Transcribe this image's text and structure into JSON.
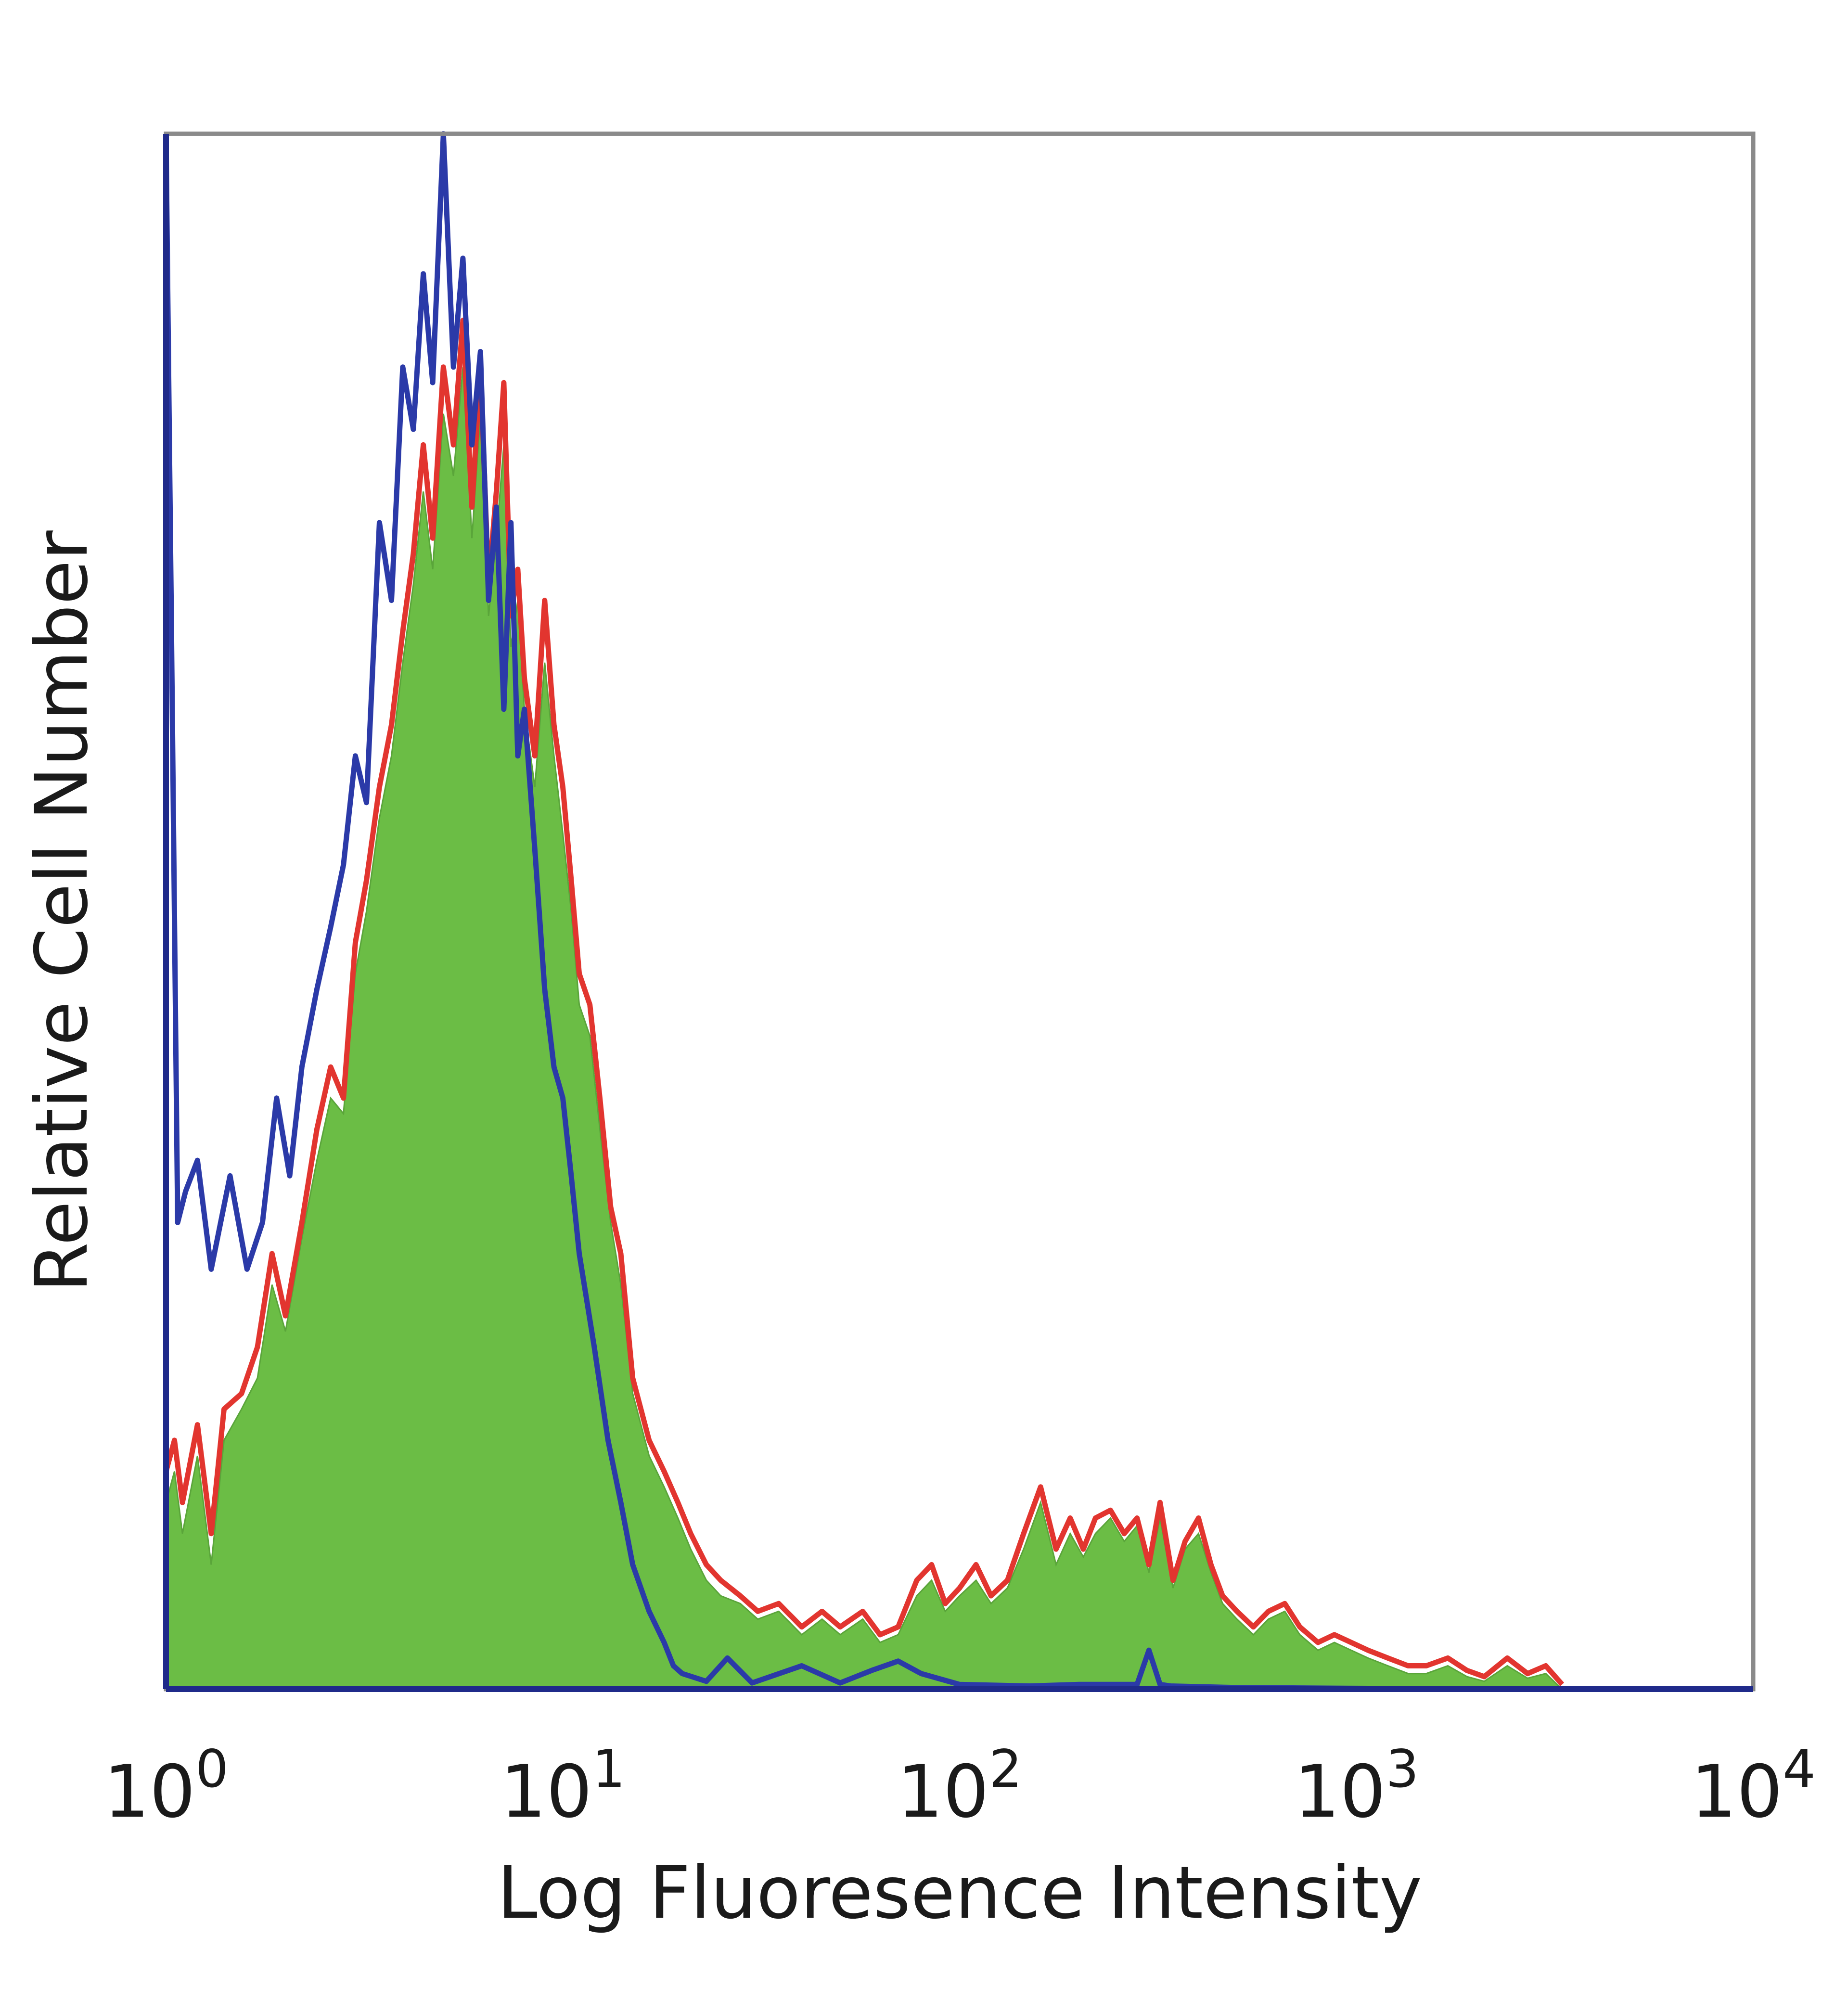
{
  "chart_data": {
    "type": "area",
    "title": "",
    "xlabel": "Log Fluoresence Intensity",
    "ylabel": "Relative Cell Number",
    "x_scale": "log",
    "xlim": [
      1,
      10000
    ],
    "ylim": [
      0,
      100
    ],
    "grid": false,
    "legend": "none",
    "x_ticks": [
      {
        "value": 1,
        "base": "10",
        "exp": "0"
      },
      {
        "value": 10,
        "base": "10",
        "exp": "1"
      },
      {
        "value": 100,
        "base": "10",
        "exp": "2"
      },
      {
        "value": 1000,
        "base": "10",
        "exp": "3"
      },
      {
        "value": 10000,
        "base": "10",
        "exp": "4"
      }
    ],
    "series": [
      {
        "style": "line",
        "color": "#2b3aa8",
        "x": [
          1.0,
          1.03,
          1.07,
          1.12,
          1.2,
          1.3,
          1.45,
          1.6,
          1.75,
          1.9,
          2.05,
          2.2,
          2.4,
          2.6,
          2.8,
          3.0,
          3.2,
          3.45,
          3.7,
          3.95,
          4.2,
          4.45,
          4.7,
          5.0,
          5.3,
          5.6,
          5.9,
          6.2,
          6.5,
          6.8,
          7.1,
          7.4,
          7.7,
          8.0,
          8.5,
          9.0,
          9.5,
          10.0,
          10.5,
          11.0,
          12.0,
          13.0,
          14.0,
          15.0,
          16.5,
          18.0,
          19.0,
          20.0,
          23.0,
          26.0,
          30.0,
          40.0,
          50.0,
          60.0,
          70.0,
          80.0,
          100.0,
          150.0,
          200.0,
          280.0,
          300.0,
          320.0,
          340.0,
          500.0,
          1000.0,
          3000.0,
          10000.0
        ],
        "values": [
          100.0,
          70.0,
          30.0,
          32.0,
          34.0,
          27.0,
          33.0,
          27.0,
          30.0,
          38.0,
          33.0,
          40.0,
          45.0,
          49.0,
          53.0,
          60.0,
          57.0,
          75.0,
          70.0,
          85.0,
          81.0,
          91.0,
          84.0,
          100.0,
          85.0,
          92.0,
          80.0,
          86.0,
          70.0,
          76.0,
          63.0,
          75.0,
          60.0,
          63.0,
          54.0,
          45.0,
          40.0,
          38.0,
          33.0,
          28.0,
          22.0,
          16.0,
          12.0,
          8.0,
          5.0,
          3.0,
          1.5,
          1.0,
          0.5,
          2.0,
          0.4,
          1.5,
          0.4,
          1.2,
          1.8,
          1.0,
          0.3,
          0.2,
          0.3,
          0.3,
          2.5,
          0.3,
          0.2,
          0.1,
          0.05,
          0.0,
          0.0
        ]
      },
      {
        "style": "line",
        "color": "#e2352f",
        "x": [
          1.0,
          1.05,
          1.1,
          1.2,
          1.3,
          1.4,
          1.55,
          1.7,
          1.85,
          2.0,
          2.2,
          2.4,
          2.6,
          2.8,
          3.0,
          3.2,
          3.45,
          3.7,
          3.95,
          4.2,
          4.45,
          4.7,
          5.0,
          5.3,
          5.6,
          5.9,
          6.2,
          6.5,
          6.8,
          7.1,
          7.4,
          7.7,
          8.0,
          8.5,
          9.0,
          9.5,
          10.0,
          10.5,
          11.0,
          11.7,
          12.4,
          13.2,
          14.0,
          15.0,
          16.5,
          18.0,
          19.5,
          21.0,
          23.0,
          25.0,
          28.0,
          31.0,
          35.0,
          40.0,
          45.0,
          50.0,
          57.0,
          63.0,
          70.0,
          78.0,
          85.0,
          92.0,
          100.0,
          110.0,
          120.0,
          132.0,
          145.0,
          160.0,
          175.0,
          190.0,
          205.0,
          220.0,
          240.0,
          260.0,
          280.0,
          300.0,
          320.0,
          345.0,
          370.0,
          400.0,
          430.0,
          460.0,
          500.0,
          550.0,
          600.0,
          660.0,
          720.0,
          800.0,
          880.0,
          970.0,
          1070.0,
          1200.0,
          1350.0,
          1500.0,
          1700.0,
          1900.0,
          2100.0,
          2400.0,
          2700.0,
          3000.0,
          3300.0
        ],
        "values": [
          14.0,
          16.0,
          12.0,
          17.0,
          10.0,
          18.0,
          19.0,
          22.0,
          28.0,
          24.0,
          30.0,
          36.0,
          40.0,
          38.0,
          48.0,
          52.0,
          58.0,
          62.0,
          68.0,
          73.0,
          80.0,
          74.0,
          85.0,
          80.0,
          88.0,
          76.0,
          85.0,
          71.0,
          77.0,
          84.0,
          69.0,
          72.0,
          65.0,
          60.0,
          70.0,
          62.0,
          58.0,
          52.0,
          46.0,
          44.0,
          38.0,
          31.0,
          28.0,
          20.0,
          16.0,
          14.0,
          12.0,
          10.0,
          8.0,
          7.0,
          6.0,
          5.0,
          5.5,
          4.0,
          5.0,
          4.0,
          5.0,
          3.5,
          4.0,
          7.0,
          8.0,
          5.5,
          6.5,
          8.0,
          6.0,
          7.0,
          10.0,
          13.0,
          9.0,
          11.0,
          9.0,
          11.0,
          11.5,
          10.0,
          11.0,
          8.0,
          12.0,
          7.0,
          9.5,
          11.0,
          8.0,
          6.0,
          5.0,
          4.0,
          5.0,
          5.5,
          4.0,
          3.0,
          3.5,
          3.0,
          2.5,
          2.0,
          1.5,
          1.5,
          2.0,
          1.2,
          0.8,
          2.0,
          1.0,
          1.5,
          0.3
        ]
      },
      {
        "style": "filled",
        "color": "#6bbd45",
        "x": [
          1.0,
          1.05,
          1.1,
          1.2,
          1.3,
          1.4,
          1.55,
          1.7,
          1.85,
          2.0,
          2.2,
          2.4,
          2.6,
          2.8,
          3.0,
          3.2,
          3.45,
          3.7,
          3.95,
          4.2,
          4.45,
          4.7,
          5.0,
          5.3,
          5.6,
          5.9,
          6.2,
          6.5,
          6.8,
          7.1,
          7.4,
          7.7,
          8.0,
          8.5,
          9.0,
          9.5,
          10.0,
          10.5,
          11.0,
          11.7,
          12.4,
          13.2,
          14.0,
          15.0,
          16.5,
          18.0,
          19.5,
          21.0,
          23.0,
          25.0,
          28.0,
          31.0,
          35.0,
          40.0,
          45.0,
          50.0,
          57.0,
          63.0,
          70.0,
          78.0,
          85.0,
          92.0,
          100.0,
          110.0,
          120.0,
          132.0,
          145.0,
          160.0,
          175.0,
          190.0,
          205.0,
          220.0,
          240.0,
          260.0,
          280.0,
          300.0,
          320.0,
          345.0,
          370.0,
          400.0,
          430.0,
          460.0,
          500.0,
          550.0,
          600.0,
          660.0,
          720.0,
          800.0,
          880.0,
          970.0,
          1070.0,
          1200.0,
          1350.0,
          1500.0,
          1700.0,
          1900.0,
          2100.0,
          2400.0,
          2700.0,
          3000.0,
          3300.0
        ],
        "values": [
          12.0,
          14.0,
          10.0,
          15.0,
          8.0,
          16.0,
          18.0,
          20.0,
          26.0,
          23.0,
          29.0,
          34.0,
          38.0,
          37.0,
          46.0,
          50.0,
          56.0,
          60.0,
          66.0,
          71.0,
          77.0,
          72.0,
          82.0,
          78.0,
          85.0,
          74.0,
          82.0,
          69.0,
          74.0,
          80.0,
          67.0,
          70.0,
          63.0,
          58.0,
          66.0,
          60.0,
          55.0,
          50.0,
          44.0,
          42.0,
          36.0,
          30.0,
          26.0,
          19.0,
          15.0,
          13.0,
          11.0,
          9.0,
          7.0,
          6.0,
          5.5,
          4.5,
          5.0,
          3.5,
          4.5,
          3.5,
          4.5,
          3.0,
          3.5,
          6.0,
          7.0,
          5.0,
          6.0,
          7.0,
          5.5,
          6.5,
          9.0,
          12.0,
          8.0,
          10.0,
          8.5,
          10.0,
          11.0,
          9.5,
          10.5,
          7.5,
          11.0,
          6.5,
          9.0,
          10.0,
          7.5,
          5.5,
          4.5,
          3.5,
          4.5,
          5.0,
          3.5,
          2.5,
          3.0,
          2.5,
          2.0,
          1.5,
          1.0,
          1.0,
          1.5,
          0.8,
          0.5,
          1.5,
          0.7,
          1.0,
          0.0
        ]
      }
    ]
  }
}
